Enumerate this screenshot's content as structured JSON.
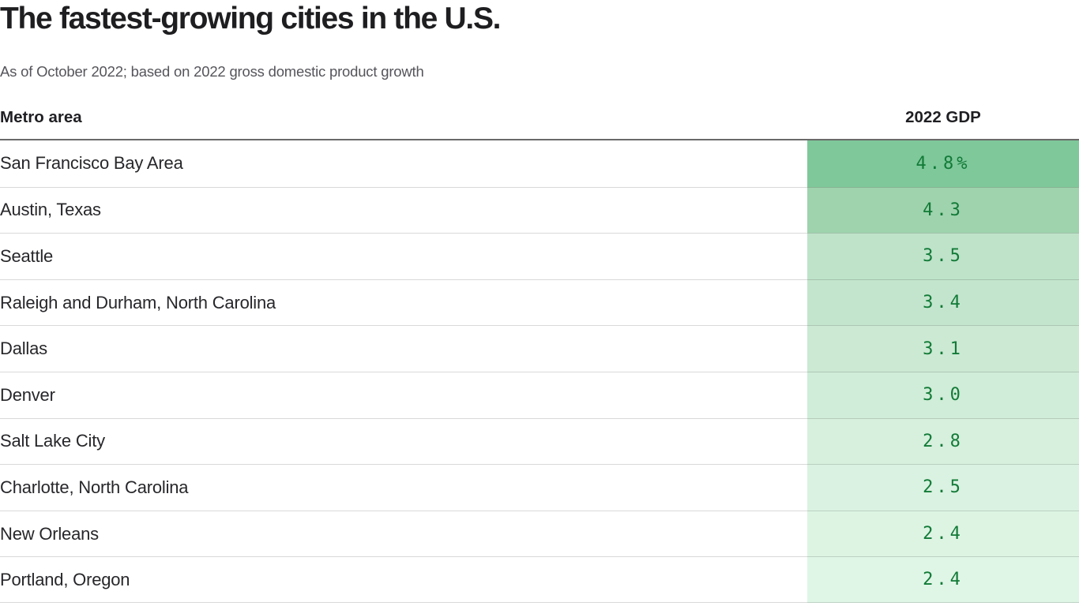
{
  "header": {
    "title": "The fastest-growing cities in the U.S.",
    "subtitle": "As of October 2022; based on 2022 gross domestic product growth"
  },
  "table": {
    "columns": {
      "metro": "Metro area",
      "gdp": "2022 GDP"
    },
    "rows": [
      {
        "metro": "San Francisco Bay Area",
        "gdp": "4.8%",
        "color": "#7ec89a"
      },
      {
        "metro": "Austin, Texas",
        "gdp": "4.3",
        "color": "#9ed3ad"
      },
      {
        "metro": "Seattle",
        "gdp": "3.5",
        "color": "#bee3c9"
      },
      {
        "metro": "Raleigh and Durham, North Carolina",
        "gdp": "3.4",
        "color": "#c3e5cd"
      },
      {
        "metro": "Dallas",
        "gdp": "3.1",
        "color": "#cbe9d3"
      },
      {
        "metro": "Denver",
        "gdp": "3.0",
        "color": "#cfedd8"
      },
      {
        "metro": "Salt Lake City",
        "gdp": "2.8",
        "color": "#d6f0dd"
      },
      {
        "metro": "Charlotte, North Carolina",
        "gdp": "2.5",
        "color": "#daf2e1"
      },
      {
        "metro": "New Orleans",
        "gdp": "2.4",
        "color": "#ddf4e3"
      },
      {
        "metro": "Portland, Oregon",
        "gdp": "2.4",
        "color": "#dff6e6"
      }
    ]
  },
  "colors": {
    "value_text": "#127a37",
    "header_rule": "#6a6a6a",
    "row_separator": "#d6d6d6",
    "title_text": "#1e1e21",
    "subtitle_text": "#55555b"
  },
  "chart_data": {
    "type": "table",
    "title": "The fastest-growing cities in the U.S.",
    "subtitle": "As of October 2022; based on 2022 gross domestic product growth",
    "columns": [
      "Metro area",
      "2022 GDP"
    ],
    "categories": [
      "San Francisco Bay Area",
      "Austin, Texas",
      "Seattle",
      "Raleigh and Durham, North Carolina",
      "Dallas",
      "Denver",
      "Salt Lake City",
      "Charlotte, North Carolina",
      "New Orleans",
      "Portland, Oregon"
    ],
    "values": [
      4.8,
      4.3,
      3.5,
      3.4,
      3.1,
      3.0,
      2.8,
      2.5,
      2.4,
      2.4
    ],
    "unit": "percent (2022 GDP growth)",
    "value_labels": [
      "4.8%",
      "4.3",
      "3.5",
      "3.4",
      "3.1",
      "3.0",
      "2.8",
      "2.5",
      "2.4",
      "2.4"
    ],
    "cell_shading": "green heatmap on value column, darker = higher growth",
    "sorted": "descending by 2022 GDP growth"
  }
}
